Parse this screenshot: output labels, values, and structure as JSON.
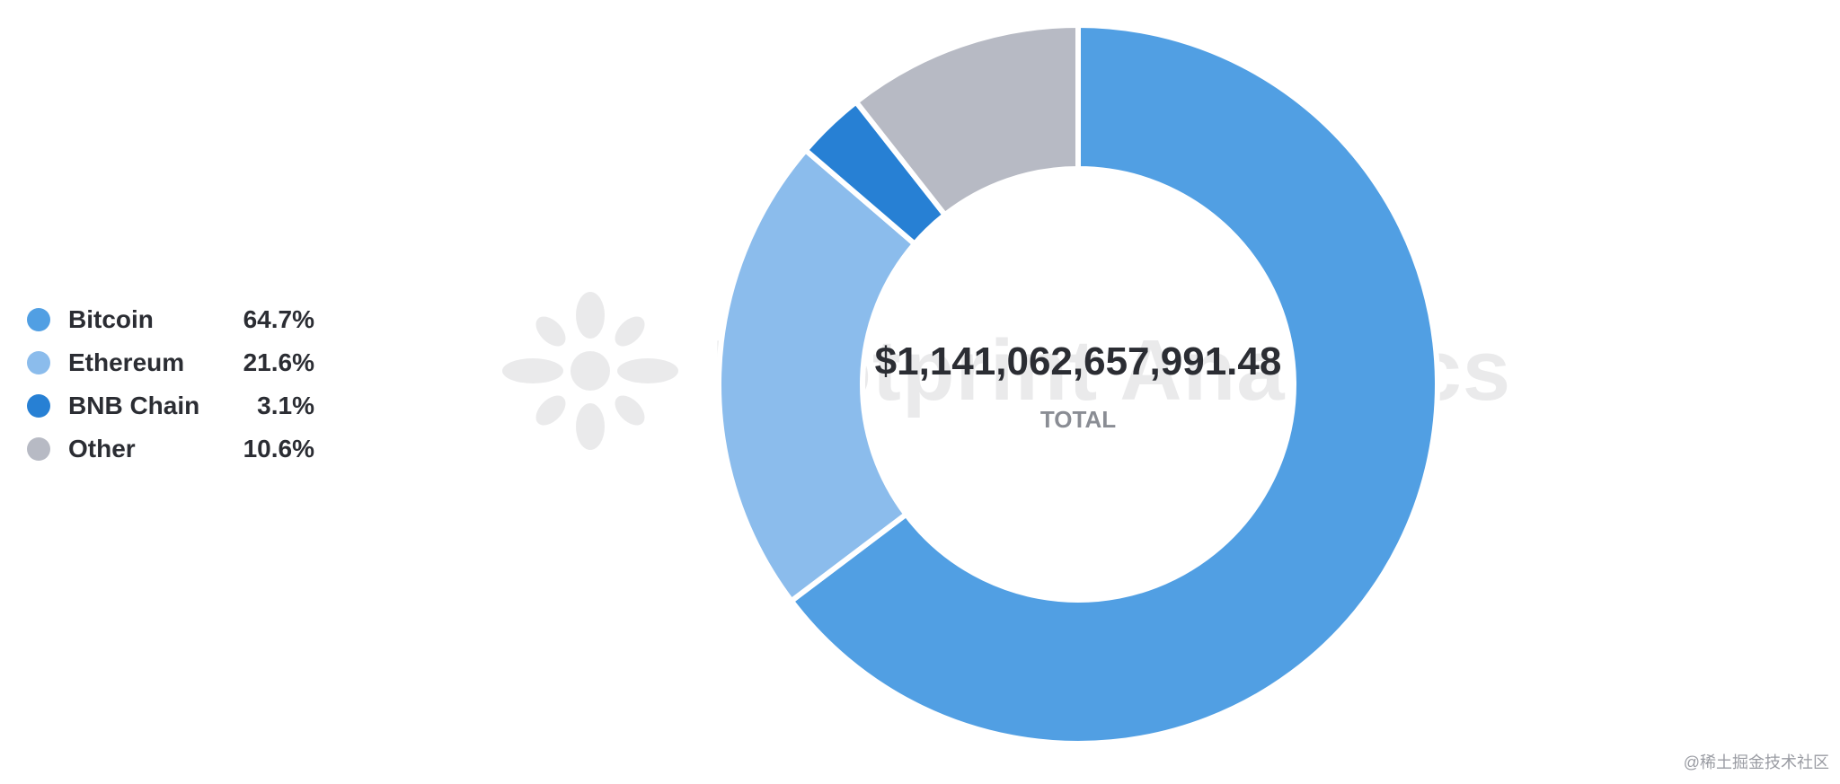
{
  "chart_data": {
    "type": "pie",
    "variant": "donut",
    "categories": [
      "Bitcoin",
      "Ethereum",
      "BNB Chain",
      "Other"
    ],
    "values": [
      64.7,
      21.6,
      3.1,
      10.6
    ],
    "value_labels": [
      "64.7%",
      "21.6%",
      "3.1%",
      "10.6%"
    ],
    "colors": [
      "#519fe3",
      "#8bbcec",
      "#2780d4",
      "#b7bac4"
    ],
    "center_value": "$1,141,062,657,991.48",
    "center_label": "TOTAL",
    "legend_position": "left"
  },
  "watermark": {
    "text": "Footprint Analytics",
    "icon": "footprint-logo-icon"
  },
  "credit": "@稀土掘金技术社区"
}
